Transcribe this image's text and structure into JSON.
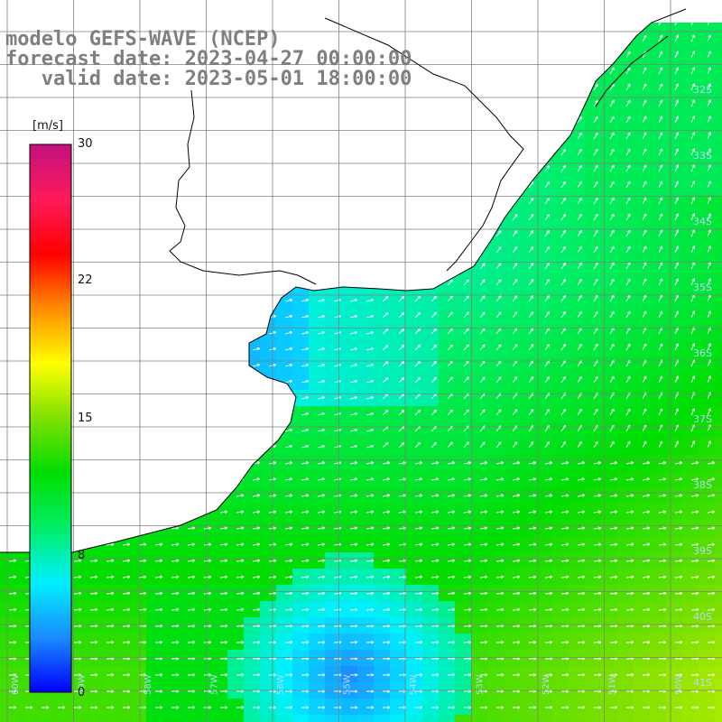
{
  "header": {
    "line1": "modelo GEFS-WAVE (NCEP)",
    "line2": "forecast date: 2023-04-27 00:00:00",
    "line3": "   valid date: 2023-05-01 18:00:00"
  },
  "colorbar": {
    "unit": "[m/s]",
    "ticks": [
      "30",
      "22",
      "15",
      "8",
      "0"
    ],
    "tick_values": [
      30,
      22,
      15,
      8,
      0
    ],
    "range": [
      0,
      30
    ],
    "colors": [
      "#0000ff",
      "#1a8cff",
      "#00f0ff",
      "#00ee66",
      "#00dd00",
      "#7fe000",
      "#ffff00",
      "#ff8c00",
      "#ff0000",
      "#ff1a5a",
      "#c21080"
    ]
  },
  "map": {
    "lat_labels": [
      "32S",
      "33S",
      "34S",
      "35S",
      "36S",
      "37S",
      "38S",
      "39S",
      "40S",
      "41S"
    ],
    "lon_labels": [
      "60W",
      "59W",
      "58W",
      "57W",
      "56W",
      "55W",
      "54W",
      "53W",
      "52W",
      "51W",
      "50W"
    ],
    "colors": {
      "land": "#ffffff",
      "coast": "#000000",
      "grid": "#7f7f7f",
      "arrow": "#ffffff"
    }
  }
}
